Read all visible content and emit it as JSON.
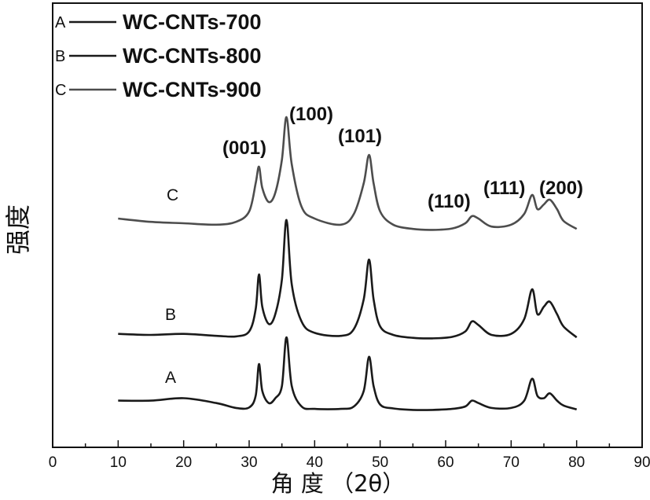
{
  "chart_data": {
    "type": "line",
    "xlabel": "角 度 （2θ）",
    "ylabel": "强度",
    "xlim": [
      0,
      90
    ],
    "x_ticks": [
      "0",
      "10",
      "20",
      "30",
      "40",
      "50",
      "60",
      "70",
      "80",
      "90"
    ],
    "x_minor_step": 5,
    "y_ticks_shown": false,
    "grid": false,
    "legend": {
      "placement": "top-left",
      "entries": [
        {
          "marker": "A",
          "label": "WC-CNTs-700"
        },
        {
          "marker": "B",
          "label": "WC-CNTs-800"
        },
        {
          "marker": "C",
          "label": "WC-CNTs-900"
        }
      ]
    },
    "curve_labels": [
      "A",
      "B",
      "C"
    ],
    "peak_labels": [
      "(001)",
      "(100)",
      "(101)",
      "(110)",
      "(111)",
      "(200)"
    ],
    "peak_positions_2theta": [
      31.5,
      35.7,
      48.3,
      64.0,
      73.2,
      75.9
    ],
    "series": [
      {
        "name": "WC-CNTs-700",
        "marker": "A",
        "color": "#1a1a1a",
        "x": [
          10,
          15,
          20,
          25,
          28,
          30,
          31,
          31.5,
          32,
          33,
          34,
          35,
          35.7,
          36.5,
          38,
          40,
          44,
          46,
          47.5,
          48.3,
          49,
          50,
          52,
          55,
          58,
          61,
          63,
          64,
          65,
          67,
          70,
          72,
          73.2,
          74,
          75,
          75.9,
          77,
          78,
          80
        ],
        "y": [
          2,
          2,
          2.5,
          1.5,
          0.5,
          0.6,
          3,
          9.5,
          4,
          1.5,
          2.5,
          5,
          15,
          5,
          0.8,
          0.3,
          0.3,
          0.8,
          4,
          11,
          5,
          1.2,
          0.4,
          0.1,
          0.1,
          0.3,
          0.8,
          2,
          1.5,
          0.5,
          0.5,
          2,
          6.5,
          3,
          2.5,
          3.5,
          2,
          1,
          0.2
        ]
      },
      {
        "name": "WC-CNTs-800",
        "marker": "B",
        "color": "#1a1a1a",
        "x": [
          10,
          15,
          20,
          25,
          28,
          30,
          31,
          31.5,
          32,
          33,
          34,
          35,
          35.7,
          36.5,
          38,
          40,
          44,
          46,
          47.5,
          48.3,
          49,
          50,
          52,
          55,
          58,
          61,
          63,
          64,
          65,
          67,
          70,
          72,
          73.2,
          74,
          75,
          75.9,
          77,
          78,
          80
        ],
        "y": [
          1,
          0.8,
          1,
          0.6,
          0.5,
          1.5,
          6,
          13,
          6.5,
          3,
          5,
          12,
          24,
          11,
          3.5,
          1.2,
          0.6,
          2,
          8,
          16,
          8,
          2.5,
          0.8,
          0.2,
          0.1,
          0.4,
          1.5,
          3.5,
          2.8,
          0.8,
          1,
          4,
          10,
          5,
          6.5,
          7.5,
          5,
          2.5,
          0.3
        ]
      },
      {
        "name": "WC-CNTs-900",
        "marker": "C",
        "color": "#4d4d4d",
        "x": [
          10,
          15,
          20,
          25,
          28,
          30,
          31,
          31.5,
          32,
          33,
          34,
          35,
          35.7,
          36.5,
          38,
          40,
          44,
          46,
          47.5,
          48.3,
          49,
          50,
          52,
          55,
          58,
          61,
          63,
          64,
          65,
          67,
          70,
          72,
          73.2,
          74,
          75,
          75.9,
          77,
          78,
          80
        ],
        "y": [
          2.5,
          1.8,
          1.5,
          1.2,
          1.8,
          4,
          10,
          13.5,
          9,
          6,
          8,
          15,
          24,
          14,
          5,
          2.5,
          1.2,
          3.5,
          10,
          16,
          10,
          4,
          1.2,
          0.3,
          0.1,
          0.4,
          1.5,
          3,
          2.5,
          0.8,
          1.2,
          3.5,
          7.5,
          4.5,
          5.5,
          6.5,
          4.5,
          2,
          0.3
        ]
      }
    ]
  }
}
